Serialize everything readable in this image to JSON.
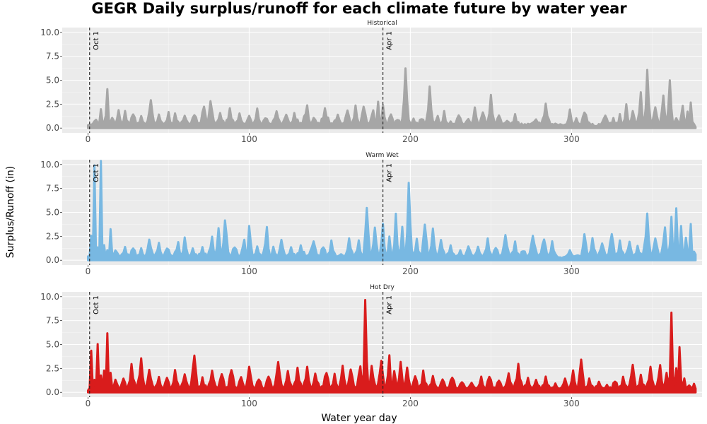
{
  "chart_data": {
    "type": "area",
    "title": "GEGR Daily surplus/runoff for each climate future by water year",
    "xlabel": "Water year day",
    "ylabel": "Surplus/Runoff (in)",
    "xlim": [
      -16,
      381
    ],
    "ylim": [
      -0.5,
      10.5
    ],
    "x_ticks": [
      0,
      100,
      200,
      300
    ],
    "y_ticks": [
      "0.0",
      "2.5",
      "5.0",
      "7.5",
      "10.0"
    ],
    "grid": true,
    "reference_lines": [
      {
        "x": 1,
        "label": "Oct 1"
      },
      {
        "x": 183,
        "label": "Apr 1"
      }
    ],
    "panels": [
      {
        "name": "Historical",
        "color": "#a6a6a6",
        "peaks": [
          [
            0,
            0.3
          ],
          [
            5,
            1.0
          ],
          [
            8,
            1.8
          ],
          [
            12,
            3.9
          ],
          [
            15,
            1.2
          ],
          [
            19,
            1.9
          ],
          [
            23,
            1.7
          ],
          [
            28,
            1.6
          ],
          [
            33,
            1.1
          ],
          [
            39,
            2.9
          ],
          [
            44,
            1.3
          ],
          [
            50,
            1.5
          ],
          [
            54,
            1.4
          ],
          [
            60,
            1.3
          ],
          [
            66,
            1.5
          ],
          [
            72,
            2.4
          ],
          [
            76,
            2.9
          ],
          [
            82,
            1.5
          ],
          [
            88,
            1.9
          ],
          [
            94,
            1.4
          ],
          [
            100,
            1.3
          ],
          [
            105,
            1.9
          ],
          [
            110,
            1.2
          ],
          [
            117,
            1.7
          ],
          [
            123,
            1.5
          ],
          [
            128,
            1.4
          ],
          [
            136,
            2.3
          ],
          [
            140,
            1.1
          ],
          [
            147,
            1.9
          ],
          [
            155,
            1.3
          ],
          [
            161,
            1.9
          ],
          [
            166,
            2.2
          ],
          [
            171,
            2.4
          ],
          [
            177,
            1.9
          ],
          [
            180,
            2.8
          ],
          [
            183,
            2.3
          ],
          [
            188,
            1.6
          ],
          [
            192,
            1.0
          ],
          [
            197,
            6.2
          ],
          [
            202,
            0.9
          ],
          [
            207,
            1.1
          ],
          [
            212,
            4.2
          ],
          [
            217,
            1.3
          ],
          [
            221,
            1.7
          ],
          [
            225,
            0.6
          ],
          [
            230,
            1.5
          ],
          [
            236,
            1.0
          ],
          [
            240,
            2.1
          ],
          [
            245,
            1.8
          ],
          [
            250,
            3.3
          ],
          [
            255,
            1.4
          ],
          [
            260,
            0.8
          ],
          [
            265,
            1.3
          ],
          [
            270,
            0.3
          ],
          [
            278,
            0.9
          ],
          [
            284,
            2.4
          ],
          [
            290,
            0.4
          ],
          [
            295,
            0.3
          ],
          [
            299,
            1.9
          ],
          [
            303,
            0.9
          ],
          [
            308,
            1.8
          ],
          [
            315,
            0.2
          ],
          [
            321,
            1.4
          ],
          [
            326,
            0.9
          ],
          [
            330,
            1.3
          ],
          [
            334,
            2.4
          ],
          [
            338,
            1.8
          ],
          [
            343,
            3.6
          ],
          [
            347,
            5.9
          ],
          [
            352,
            2.3
          ],
          [
            357,
            3.4
          ],
          [
            361,
            5.1
          ],
          [
            365,
            1.2
          ],
          [
            369,
            2.5
          ],
          [
            372,
            1.6
          ],
          [
            374,
            2.6
          ],
          [
            377,
            0.1
          ]
        ]
      },
      {
        "name": "Warm Wet",
        "color": "#78b8e2",
        "peaks": [
          [
            0,
            0.4
          ],
          [
            2,
            2.5
          ],
          [
            4,
            9.8
          ],
          [
            6,
            1.2
          ],
          [
            8,
            10.2
          ],
          [
            10,
            1.4
          ],
          [
            12,
            0.9
          ],
          [
            14,
            3.1
          ],
          [
            17,
            1.1
          ],
          [
            23,
            1.3
          ],
          [
            28,
            1.4
          ],
          [
            33,
            1.1
          ],
          [
            38,
            2.2
          ],
          [
            44,
            1.7
          ],
          [
            49,
            1.4
          ],
          [
            56,
            1.8
          ],
          [
            60,
            2.4
          ],
          [
            65,
            1.1
          ],
          [
            71,
            1.2
          ],
          [
            77,
            2.4
          ],
          [
            81,
            3.4
          ],
          [
            85,
            4.3
          ],
          [
            91,
            1.5
          ],
          [
            97,
            2.2
          ],
          [
            100,
            3.6
          ],
          [
            105,
            1.3
          ],
          [
            111,
            3.3
          ],
          [
            115,
            1.3
          ],
          [
            120,
            2.1
          ],
          [
            126,
            1.2
          ],
          [
            132,
            1.4
          ],
          [
            140,
            2.0
          ],
          [
            146,
            1.5
          ],
          [
            151,
            1.9
          ],
          [
            157,
            0.6
          ],
          [
            162,
            2.2
          ],
          [
            168,
            1.9
          ],
          [
            173,
            5.6
          ],
          [
            178,
            3.4
          ],
          [
            183,
            3.7
          ],
          [
            187,
            2.3
          ],
          [
            191,
            4.7
          ],
          [
            195,
            3.4
          ],
          [
            199,
            8.1
          ],
          [
            204,
            2.1
          ],
          [
            209,
            3.9
          ],
          [
            214,
            3.2
          ],
          [
            219,
            2.1
          ],
          [
            225,
            1.4
          ],
          [
            231,
            0.9
          ],
          [
            236,
            1.5
          ],
          [
            242,
            1.3
          ],
          [
            248,
            2.1
          ],
          [
            253,
            1.4
          ],
          [
            259,
            2.6
          ],
          [
            265,
            1.8
          ],
          [
            270,
            1.1
          ],
          [
            276,
            2.6
          ],
          [
            283,
            2.3
          ],
          [
            288,
            1.8
          ],
          [
            294,
            0.2
          ],
          [
            299,
            1.0
          ],
          [
            304,
            0.6
          ],
          [
            308,
            2.9
          ],
          [
            313,
            2.2
          ],
          [
            319,
            1.8
          ],
          [
            325,
            2.9
          ],
          [
            330,
            1.9
          ],
          [
            336,
            1.9
          ],
          [
            341,
            1.4
          ],
          [
            347,
            4.7
          ],
          [
            352,
            2.4
          ],
          [
            358,
            3.4
          ],
          [
            362,
            4.4
          ],
          [
            365,
            5.6
          ],
          [
            368,
            3.4
          ],
          [
            371,
            2.5
          ],
          [
            374,
            3.7
          ],
          [
            376,
            0.9
          ],
          [
            377,
            0.6
          ]
        ]
      },
      {
        "name": "Hot Dry",
        "color": "#d91c1c",
        "peaks": [
          [
            0,
            0.2
          ],
          [
            2,
            4.3
          ],
          [
            4,
            1.2
          ],
          [
            6,
            4.9
          ],
          [
            8,
            1.6
          ],
          [
            10,
            2.1
          ],
          [
            12,
            6.0
          ],
          [
            14,
            1.9
          ],
          [
            17,
            1.4
          ],
          [
            22,
            1.5
          ],
          [
            27,
            2.8
          ],
          [
            33,
            3.4
          ],
          [
            38,
            2.4
          ],
          [
            44,
            1.5
          ],
          [
            49,
            1.7
          ],
          [
            54,
            2.2
          ],
          [
            60,
            1.9
          ],
          [
            66,
            4.0
          ],
          [
            71,
            1.4
          ],
          [
            77,
            2.2
          ],
          [
            83,
            2.0
          ],
          [
            89,
            2.5
          ],
          [
            95,
            1.7
          ],
          [
            100,
            2.7
          ],
          [
            106,
            1.5
          ],
          [
            112,
            1.8
          ],
          [
            118,
            3.2
          ],
          [
            124,
            2.1
          ],
          [
            130,
            2.4
          ],
          [
            136,
            2.6
          ],
          [
            141,
            1.9
          ],
          [
            148,
            2.2
          ],
          [
            153,
            1.8
          ],
          [
            158,
            2.8
          ],
          [
            163,
            2.5
          ],
          [
            169,
            2.9
          ],
          [
            172,
            9.5
          ],
          [
            176,
            2.7
          ],
          [
            182,
            3.4
          ],
          [
            187,
            3.7
          ],
          [
            190,
            2.4
          ],
          [
            194,
            3.3
          ],
          [
            198,
            2.6
          ],
          [
            203,
            1.8
          ],
          [
            208,
            2.1
          ],
          [
            214,
            1.6
          ],
          [
            220,
            1.4
          ],
          [
            226,
            1.7
          ],
          [
            232,
            1.2
          ],
          [
            238,
            1.0
          ],
          [
            244,
            1.5
          ],
          [
            249,
            1.8
          ],
          [
            255,
            1.3
          ],
          [
            261,
            1.9
          ],
          [
            267,
            2.8
          ],
          [
            273,
            1.4
          ],
          [
            278,
            1.3
          ],
          [
            284,
            1.5
          ],
          [
            290,
            0.8
          ],
          [
            296,
            1.4
          ],
          [
            301,
            2.2
          ],
          [
            306,
            3.6
          ],
          [
            311,
            1.3
          ],
          [
            317,
            1.1
          ],
          [
            322,
            0.7
          ],
          [
            327,
            1.3
          ],
          [
            332,
            1.5
          ],
          [
            338,
            2.9
          ],
          [
            343,
            1.7
          ],
          [
            349,
            2.5
          ],
          [
            355,
            2.8
          ],
          [
            359,
            2.1
          ],
          [
            362,
            8.2
          ],
          [
            365,
            2.7
          ],
          [
            367,
            4.9
          ],
          [
            370,
            1.3
          ],
          [
            373,
            0.8
          ],
          [
            376,
            0.9
          ],
          [
            377,
            0.4
          ]
        ]
      }
    ]
  }
}
